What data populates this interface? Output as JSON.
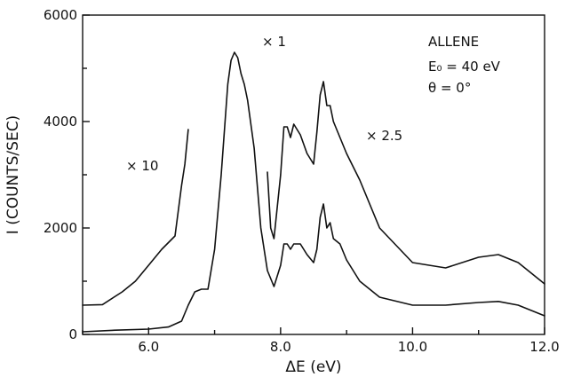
{
  "chart_data": {
    "type": "line",
    "title": "",
    "xlabel": "ΔE (eV)",
    "ylabel": "I (COUNTS/SEC)",
    "xlim": [
      5.0,
      12.0
    ],
    "ylim": [
      0,
      6000
    ],
    "x_ticks": [
      6.0,
      8.0,
      10.0,
      12.0
    ],
    "x_tick_labels": [
      "6.0",
      "8.0",
      "10.0",
      "12.0"
    ],
    "y_ticks": [
      0,
      2000,
      4000,
      6000
    ],
    "y_tick_labels": [
      "0",
      "2000",
      "4000",
      "6000"
    ],
    "grid": false,
    "legend": "none",
    "annotations": {
      "molecule": "ALLENE",
      "energy": "E₀ = 40 eV",
      "angle": "θ = 0°",
      "scale_x10": "× 10",
      "scale_x1": "× 1",
      "scale_x25": "× 2.5"
    },
    "series": [
      {
        "label_ref": "scale_x1",
        "points": [
          [
            5.0,
            50
          ],
          [
            5.5,
            80
          ],
          [
            6.0,
            100
          ],
          [
            6.3,
            140
          ],
          [
            6.5,
            250
          ],
          [
            6.6,
            550
          ],
          [
            6.7,
            800
          ],
          [
            6.8,
            850
          ],
          [
            6.9,
            850
          ],
          [
            7.0,
            1600
          ],
          [
            7.1,
            3000
          ],
          [
            7.2,
            4700
          ],
          [
            7.25,
            5150
          ],
          [
            7.3,
            5300
          ],
          [
            7.35,
            5200
          ],
          [
            7.4,
            4900
          ],
          [
            7.45,
            4700
          ],
          [
            7.5,
            4400
          ],
          [
            7.6,
            3500
          ],
          [
            7.7,
            2000
          ],
          [
            7.8,
            1200
          ],
          [
            7.9,
            900
          ],
          [
            8.0,
            1300
          ],
          [
            8.05,
            1700
          ],
          [
            8.1,
            1700
          ],
          [
            8.15,
            1600
          ],
          [
            8.2,
            1700
          ],
          [
            8.3,
            1700
          ],
          [
            8.4,
            1500
          ],
          [
            8.5,
            1350
          ],
          [
            8.55,
            1600
          ],
          [
            8.6,
            2200
          ],
          [
            8.65,
            2450
          ],
          [
            8.7,
            2000
          ],
          [
            8.75,
            2100
          ],
          [
            8.8,
            1800
          ],
          [
            8.9,
            1700
          ],
          [
            9.0,
            1400
          ],
          [
            9.2,
            1000
          ],
          [
            9.5,
            700
          ],
          [
            10.0,
            550
          ],
          [
            10.5,
            550
          ],
          [
            11.0,
            600
          ],
          [
            11.3,
            620
          ],
          [
            11.6,
            550
          ],
          [
            12.0,
            350
          ]
        ]
      },
      {
        "label_ref": "scale_x10",
        "points": [
          [
            5.0,
            550
          ],
          [
            5.3,
            560
          ],
          [
            5.6,
            800
          ],
          [
            5.8,
            1000
          ],
          [
            6.0,
            1300
          ],
          [
            6.2,
            1600
          ],
          [
            6.4,
            1850
          ],
          [
            6.5,
            2800
          ],
          [
            6.55,
            3200
          ],
          [
            6.6,
            3850
          ]
        ]
      },
      {
        "label_ref": "scale_x25",
        "points": [
          [
            7.8,
            3050
          ],
          [
            7.85,
            2000
          ],
          [
            7.9,
            1800
          ],
          [
            8.0,
            3000
          ],
          [
            8.05,
            3900
          ],
          [
            8.1,
            3900
          ],
          [
            8.15,
            3700
          ],
          [
            8.2,
            3950
          ],
          [
            8.3,
            3750
          ],
          [
            8.4,
            3400
          ],
          [
            8.5,
            3200
          ],
          [
            8.55,
            3800
          ],
          [
            8.6,
            4500
          ],
          [
            8.65,
            4750
          ],
          [
            8.7,
            4300
          ],
          [
            8.75,
            4300
          ],
          [
            8.8,
            4000
          ],
          [
            8.9,
            3700
          ],
          [
            9.0,
            3400
          ],
          [
            9.2,
            2900
          ],
          [
            9.5,
            2000
          ],
          [
            10.0,
            1350
          ],
          [
            10.5,
            1250
          ],
          [
            11.0,
            1450
          ],
          [
            11.3,
            1500
          ],
          [
            11.6,
            1350
          ],
          [
            12.0,
            950
          ]
        ]
      }
    ]
  }
}
